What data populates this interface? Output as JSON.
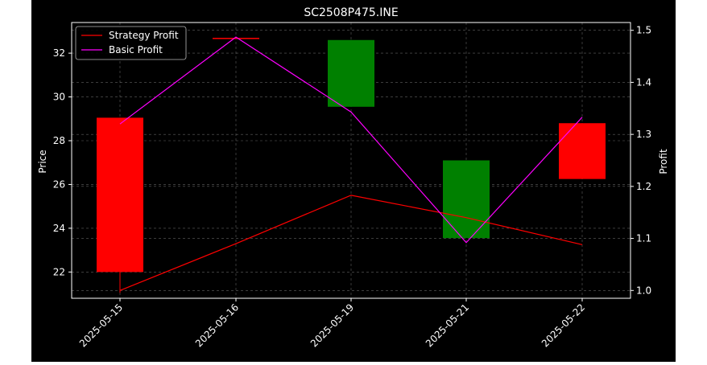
{
  "chart_data": {
    "type": "candlestick",
    "title": "SC2508P475.INE",
    "xlabel": "",
    "ylabel": "Price",
    "y2label": "Profit",
    "categories": [
      "2025-05-15",
      "2025-05-16",
      "2025-05-19",
      "2025-05-21",
      "2025-05-22"
    ],
    "candles": [
      {
        "date": "2025-05-15",
        "open": 29.05,
        "close": 22.0,
        "high": 29.05,
        "low": 21.05
      },
      {
        "date": "2025-05-16",
        "open": 32.7,
        "close": 32.65,
        "high": 32.7,
        "low": 32.65
      },
      {
        "date": "2025-05-19",
        "open": 29.55,
        "close": 32.6,
        "high": 32.6,
        "low": 29.55
      },
      {
        "date": "2025-05-21",
        "open": 23.55,
        "close": 27.1,
        "high": 27.1,
        "low": 23.55
      },
      {
        "date": "2025-05-22",
        "open": 28.8,
        "close": 26.25,
        "high": 28.8,
        "low": 26.25
      }
    ],
    "series": [
      {
        "name": "Strategy Profit",
        "color": "#ff0000",
        "values": [
          1.0,
          1.09,
          1.183,
          1.14,
          1.088
        ]
      },
      {
        "name": "Basic Profit",
        "color": "#ff00ff",
        "values": [
          1.32,
          1.487,
          1.343,
          1.092,
          1.333
        ]
      }
    ],
    "ylim": [
      20.8,
      33.4
    ],
    "y2lim": [
      0.985,
      1.515
    ],
    "yticks": [
      22,
      24,
      26,
      28,
      30,
      32
    ],
    "y2ticks": [
      1.0,
      1.1,
      1.2,
      1.3,
      1.4,
      1.5
    ],
    "up_color": "#008000",
    "down_color": "#ff0000",
    "grid": true,
    "legend_position": "top-left",
    "background": "#000000"
  }
}
